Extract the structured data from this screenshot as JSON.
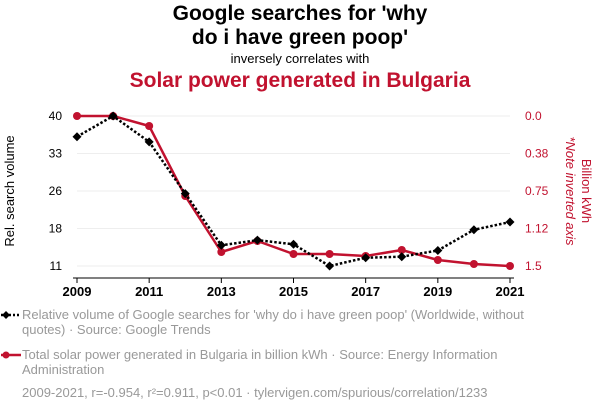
{
  "header": {
    "title_line1": "Google searches for 'why",
    "title_line2": "do i have green poop'",
    "subtitle": "inversely correlates with",
    "title2": "Solar power generated in Bulgaria"
  },
  "colors": {
    "series1": "#000000",
    "series2": "#c1122f",
    "muted": "#999999"
  },
  "chart_data": {
    "type": "line",
    "x": [
      2009,
      2010,
      2011,
      2012,
      2013,
      2014,
      2015,
      2016,
      2017,
      2018,
      2019,
      2020,
      2021
    ],
    "xticks": [
      "2009",
      "2011",
      "2013",
      "2015",
      "2017",
      "2019",
      "2021"
    ],
    "left_axis": {
      "label": "Rel. search volume",
      "ticks": [
        "40",
        "33",
        "26",
        "18",
        "11"
      ],
      "range": [
        11,
        40
      ]
    },
    "right_axis": {
      "label": "Billion kWh",
      "note": "*Note inverted axis",
      "ticks": [
        "0.0",
        "0.38",
        "0.75",
        "1.12",
        "1.5"
      ],
      "range": [
        0,
        1.5
      ],
      "inverted": true
    },
    "series": [
      {
        "name": "Relative volume of Google searches for 'why do i have green poop' (Worldwide, without quotes)",
        "axis": "left",
        "style": "dotted",
        "marker": "diamond",
        "values": [
          36,
          40,
          35,
          25,
          15,
          16,
          15.2,
          11,
          12.6,
          12.8,
          14,
          18,
          19.5
        ]
      },
      {
        "name": "Total solar power generated in Bulgaria in billion kWh",
        "axis": "right",
        "style": "solid",
        "marker": "circle",
        "values": [
          0.0,
          0.0,
          0.1,
          0.8,
          1.36,
          1.25,
          1.38,
          1.38,
          1.4,
          1.34,
          1.44,
          1.48,
          1.5
        ]
      }
    ]
  },
  "legend": {
    "item1": "Relative volume of Google searches for 'why do i have green poop' (Worldwide, without quotes) · Source: Google Trends",
    "item2": "Total solar power generated in Bulgaria in billion kWh · Source: Energy Information Administration"
  },
  "footer": "2009-2021, r=-0.954, r²=0.911, p<0.01 · tylervigen.com/spurious/correlation/1233"
}
